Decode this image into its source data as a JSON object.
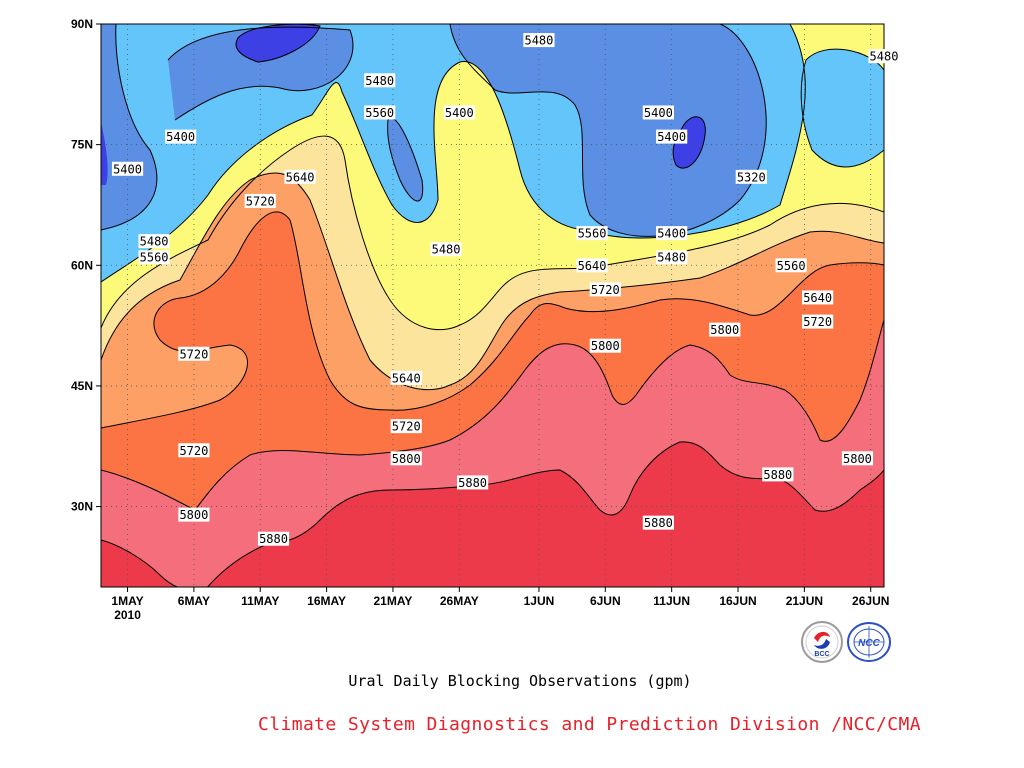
{
  "chart_data": {
    "type": "heatmap",
    "plot_kind": "filled contour (time-latitude)",
    "title": "Ural Daily Blocking Observations (gpm)",
    "credit": "Climate System Diagnostics and Prediction Division /NCC/CMA",
    "x_ticks": [
      "1MAY",
      "6MAY",
      "11MAY",
      "16MAY",
      "21MAY",
      "26MAY",
      "1JUN",
      "6JUN",
      "11JUN",
      "16JUN",
      "21JUN",
      "26JUN"
    ],
    "x_year_label": "2010",
    "y_ticks": [
      "30N",
      "45N",
      "60N",
      "75N",
      "90N"
    ],
    "ylim_deg": [
      20,
      90
    ],
    "x_range": [
      "29 Apr 2010",
      "27 Jun 2010"
    ],
    "contour_levels": [
      5320,
      5400,
      5480,
      5560,
      5640,
      5720,
      5800,
      5880
    ],
    "fill_colors": {
      "below_5320": "#3d40e4",
      "5320_5400": "#5a8fe4",
      "5400_5480": "#64c5fa",
      "5480_5560": "#fcfa78",
      "5560_5640": "#fde49c",
      "5640_5720": "#fda066",
      "5720_5800": "#fc7444",
      "5800_5880": "#f56e7c",
      "above_5880": "#ed3a4a"
    },
    "contour_line_labels": [
      {
        "value": "5480",
        "date": "20 May",
        "lat": 83
      },
      {
        "value": "5560",
        "date": "20 May",
        "lat": 79
      },
      {
        "value": "5400",
        "date": "26 May",
        "lat": 79
      },
      {
        "value": "5480",
        "date": "1 Jun",
        "lat": 88
      },
      {
        "value": "5400",
        "date": "5 May",
        "lat": 76
      },
      {
        "value": "5400",
        "date": "1 May",
        "lat": 72
      },
      {
        "value": "5640",
        "date": "14 May",
        "lat": 71
      },
      {
        "value": "5720",
        "date": "11 May",
        "lat": 68
      },
      {
        "value": "5480",
        "date": "3 May",
        "lat": 63
      },
      {
        "value": "5560",
        "date": "3 May",
        "lat": 61
      },
      {
        "value": "5480",
        "date": "25 May",
        "lat": 62
      },
      {
        "value": "5560",
        "date": "5 Jun",
        "lat": 64
      },
      {
        "value": "5640",
        "date": "5 Jun",
        "lat": 60
      },
      {
        "value": "5720",
        "date": "6 Jun",
        "lat": 57
      },
      {
        "value": "5400",
        "date": "10 Jun",
        "lat": 79
      },
      {
        "value": "5400",
        "date": "11 Jun",
        "lat": 76
      },
      {
        "value": "5320",
        "date": "17 Jun",
        "lat": 71
      },
      {
        "value": "5400",
        "date": "11 Jun",
        "lat": 64
      },
      {
        "value": "5480",
        "date": "11 Jun",
        "lat": 61
      },
      {
        "value": "5560",
        "date": "20 Jun",
        "lat": 60
      },
      {
        "value": "5640",
        "date": "22 Jun",
        "lat": 56
      },
      {
        "value": "5720",
        "date": "22 Jun",
        "lat": 53
      },
      {
        "value": "5480",
        "date": "27 Jun",
        "lat": 86
      },
      {
        "value": "5720",
        "date": "6 May",
        "lat": 49
      },
      {
        "value": "5640",
        "date": "22 May",
        "lat": 46
      },
      {
        "value": "5800",
        "date": "6 Jun",
        "lat": 50
      },
      {
        "value": "5800",
        "date": "15 Jun",
        "lat": 52
      },
      {
        "value": "5720",
        "date": "6 May",
        "lat": 37
      },
      {
        "value": "5720",
        "date": "22 May",
        "lat": 40
      },
      {
        "value": "5800",
        "date": "22 May",
        "lat": 36
      },
      {
        "value": "5880",
        "date": "27 May",
        "lat": 33
      },
      {
        "value": "5880",
        "date": "19 Jun",
        "lat": 34
      },
      {
        "value": "5800",
        "date": "25 Jun",
        "lat": 36
      },
      {
        "value": "5800",
        "date": "6 May",
        "lat": 29
      },
      {
        "value": "5880",
        "date": "12 May",
        "lat": 26
      },
      {
        "value": "5880",
        "date": "10 Jun",
        "lat": 28
      }
    ],
    "grid": true,
    "grid_style": "dotted",
    "legend": "none"
  },
  "logos": [
    {
      "name": "bcc-logo",
      "text": "BCC"
    },
    {
      "name": "ncc-logo",
      "text": "NCC"
    }
  ]
}
